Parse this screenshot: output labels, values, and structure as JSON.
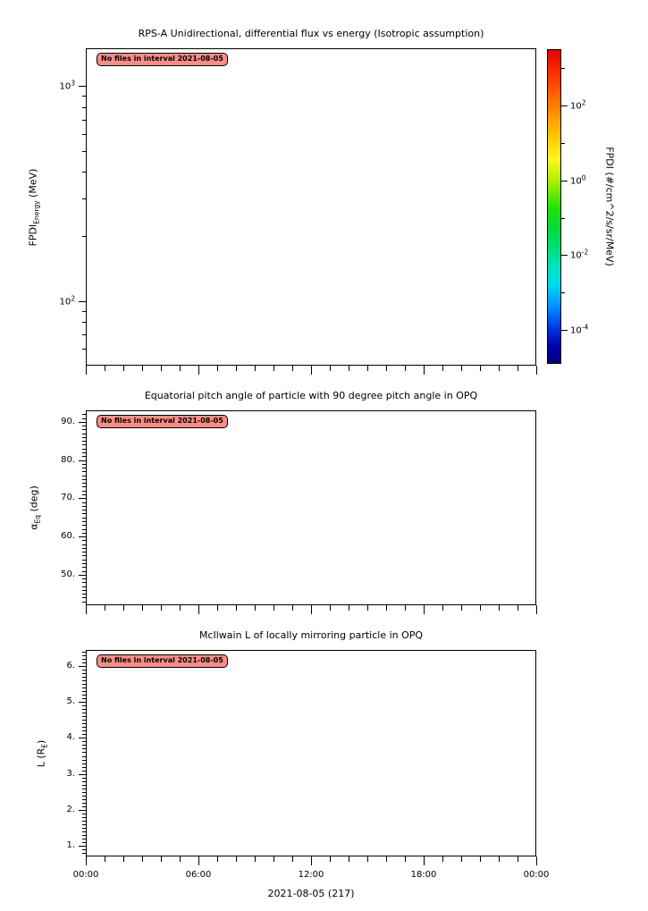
{
  "figure": {
    "background": "#ffffff",
    "annotation_badge": {
      "text": "No files in interval 2021-08-05",
      "fill_color": "#f88e87",
      "border_color": "#000000"
    }
  },
  "chart_data": [
    {
      "type": "line",
      "title": "RPS-A Unidirectional, differential flux vs energy (Isotropic assumption)",
      "ylabel": "FPDI_{Energy} (MeV)",
      "yscale": "log",
      "ylim": [
        50,
        1500
      ],
      "yticks": [
        100,
        1000
      ],
      "ytick_labels": [
        "10^{2}",
        "10^{3}"
      ],
      "yminor": [
        60,
        70,
        80,
        90,
        200,
        300,
        400,
        500,
        600,
        700,
        800,
        900
      ],
      "xlim_hours": [
        0,
        24
      ],
      "xticks_hours": [
        0,
        6,
        12,
        18,
        24
      ],
      "xminor_step_hours": 1,
      "series": [],
      "annotation": "No files in interval 2021-08-05",
      "colorbar": {
        "label": "FPDI (#/cm^2/s/sr/MeV)",
        "scale": "log",
        "lim_exponents": [
          -4.9,
          3.5
        ],
        "tick_exponents": [
          2,
          0,
          -2,
          -4
        ],
        "tick_labels": [
          "10^{2}",
          "10^{0}",
          "10^{-2}",
          "10^{-4}"
        ],
        "minor_exponents": [
          3,
          1,
          -1,
          -3
        ],
        "colormap": "jet"
      }
    },
    {
      "type": "line",
      "title": "Equatorial pitch angle of particle with 90 degree pitch angle in OPQ",
      "ylabel": "α_{Eq} (deg)",
      "yscale": "linear",
      "ylim": [
        42,
        93
      ],
      "yticks": [
        50,
        60,
        70,
        80,
        90
      ],
      "ytick_labels": [
        "50.",
        "60.",
        "70.",
        "80.",
        "90."
      ],
      "yminor_step": 1,
      "xlim_hours": [
        0,
        24
      ],
      "xticks_hours": [
        0,
        6,
        12,
        18,
        24
      ],
      "xminor_step_hours": 1,
      "series": [],
      "annotation": "No files in interval 2021-08-05"
    },
    {
      "type": "line",
      "title": "McIlwain L of locally mirroring particle in OPQ",
      "ylabel": "L (R_{E})",
      "yscale": "linear",
      "ylim": [
        0.7,
        6.45
      ],
      "yticks": [
        1,
        2,
        3,
        4,
        5,
        6
      ],
      "ytick_labels": [
        "1.",
        "2.",
        "3.",
        "4.",
        "5.",
        "6."
      ],
      "yminor_step": 0.1,
      "xlim_hours": [
        0,
        24
      ],
      "xticks_hours": [
        0,
        6,
        12,
        18,
        24
      ],
      "xminor_step_hours": 1,
      "xtick_labels": [
        "00:00",
        "06:00",
        "12:00",
        "18:00",
        "00:00"
      ],
      "xlabel": "2021-08-05 (217)",
      "series": [],
      "annotation": "No files in interval 2021-08-05"
    }
  ]
}
